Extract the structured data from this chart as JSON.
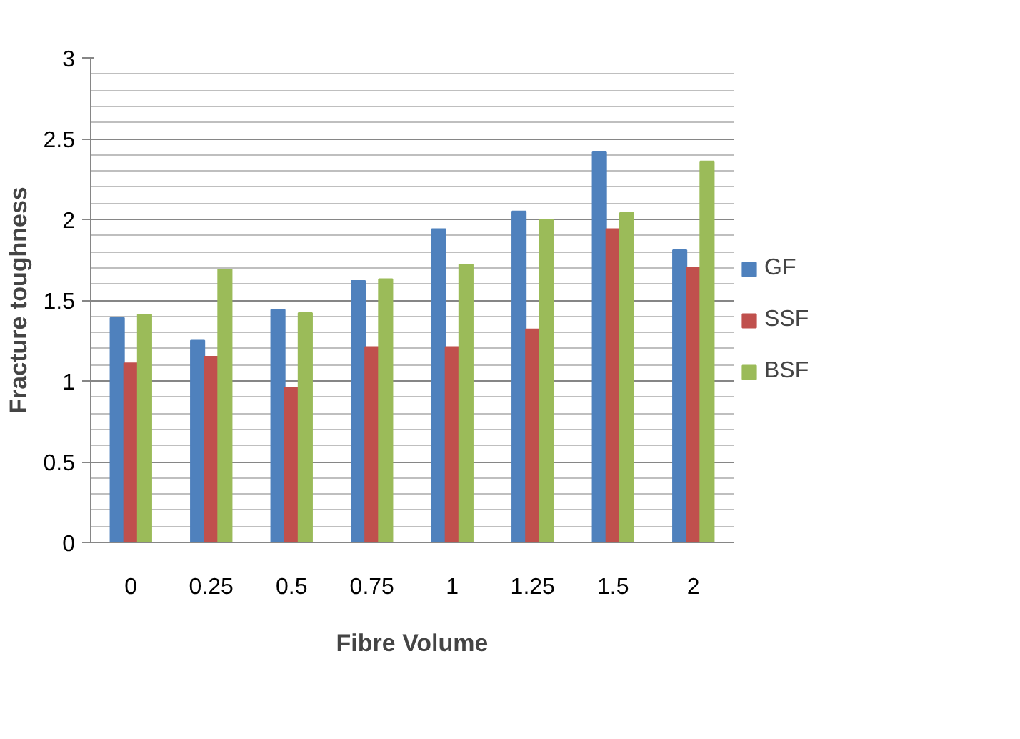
{
  "chart_data": {
    "type": "bar",
    "xlabel": "Fibre Volume",
    "ylabel": "Fracture toughness",
    "categories": [
      "0",
      "0.25",
      "0.5",
      "0.75",
      "1",
      "1.25",
      "1.5",
      "2"
    ],
    "series": [
      {
        "name": "GF",
        "color": "#4f81bd",
        "values": [
          1.39,
          1.25,
          1.44,
          1.62,
          1.94,
          2.05,
          2.42,
          1.81
        ]
      },
      {
        "name": "SSF",
        "color": "#c0504d",
        "values": [
          1.11,
          1.15,
          0.96,
          1.21,
          1.21,
          1.32,
          1.94,
          1.7
        ]
      },
      {
        "name": "BSF",
        "color": "#9bbb59",
        "values": [
          1.41,
          1.69,
          1.42,
          1.63,
          1.72,
          2.0,
          2.04,
          2.36
        ]
      }
    ],
    "ylim": [
      0,
      3
    ],
    "yticks": [
      0,
      0.5,
      1,
      1.5,
      2,
      2.5,
      3
    ],
    "grid": "y",
    "legend": "right"
  }
}
